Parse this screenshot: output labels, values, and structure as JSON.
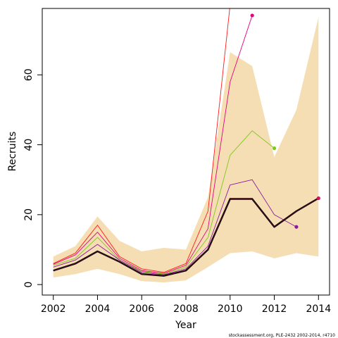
{
  "chart_data": {
    "type": "line",
    "xlabel": "Year",
    "ylabel": "Recruits",
    "xlim": [
      2001.5,
      2014.5
    ],
    "ylim": [
      -3,
      79
    ],
    "x_ticks": [
      2002,
      2004,
      2006,
      2008,
      2010,
      2012,
      2014
    ],
    "y_ticks": [
      0,
      20,
      40,
      60
    ],
    "grid": false,
    "band_color": "#f5deb3",
    "band": {
      "x": [
        2002,
        2003,
        2004,
        2005,
        2006,
        2007,
        2008,
        2009,
        2010,
        2011,
        2012,
        2013,
        2014
      ],
      "lower": [
        2.0,
        3.0,
        4.5,
        3.0,
        1.0,
        0.6,
        1.2,
        5.0,
        9.0,
        9.5,
        7.5,
        9.0,
        8.0
      ],
      "upper": [
        8.0,
        11.0,
        19.5,
        12.5,
        9.5,
        10.5,
        10.0,
        25.0,
        66.5,
        62.5,
        36.5,
        50.0,
        76.5
      ]
    },
    "series": [
      {
        "color": "#000000",
        "color2": "#5a1030",
        "width": 2.4,
        "end_marker": true,
        "x": [
          2002,
          2003,
          2004,
          2005,
          2006,
          2007,
          2008,
          2009,
          2010,
          2011,
          2012,
          2013,
          2014
        ],
        "values": [
          4.0,
          6.0,
          9.5,
          6.5,
          3.0,
          2.5,
          4.0,
          10.0,
          24.5,
          24.5,
          16.5,
          21.0,
          24.7
        ]
      },
      {
        "color": "#8b1a9c",
        "width": 0.9,
        "end_marker": true,
        "x": [
          2002,
          2003,
          2004,
          2005,
          2006,
          2007,
          2008,
          2009,
          2010,
          2011,
          2012,
          2013
        ],
        "values": [
          5.0,
          7.0,
          11.5,
          7.0,
          3.5,
          2.8,
          4.5,
          11.0,
          28.5,
          30.0,
          20.0,
          16.5
        ]
      },
      {
        "color": "#7ec81e",
        "width": 0.9,
        "end_marker": true,
        "x": [
          2002,
          2003,
          2004,
          2005,
          2006,
          2007,
          2008,
          2009,
          2010,
          2011,
          2012
        ],
        "values": [
          5.5,
          7.5,
          13.5,
          7.0,
          3.8,
          3.0,
          5.0,
          13.5,
          37.0,
          44.0,
          39.0
        ]
      },
      {
        "color": "#e6007e",
        "width": 0.9,
        "end_marker": true,
        "x": [
          2002,
          2003,
          2004,
          2005,
          2006,
          2007,
          2008,
          2009,
          2010,
          2011
        ],
        "values": [
          5.8,
          8.5,
          15.0,
          7.5,
          4.0,
          3.2,
          5.5,
          16.0,
          58.0,
          77.0
        ]
      },
      {
        "color": "#ff1a1a",
        "width": 0.9,
        "end_marker": false,
        "x": [
          2002,
          2003,
          2004,
          2005,
          2006,
          2007,
          2008,
          2009,
          2010
        ],
        "values": [
          6.0,
          9.0,
          17.0,
          8.0,
          4.5,
          3.5,
          6.0,
          21.0,
          80.0
        ]
      }
    ],
    "footnote": "stockassessment.org, PLE-2432  2002-2014, r4710"
  }
}
